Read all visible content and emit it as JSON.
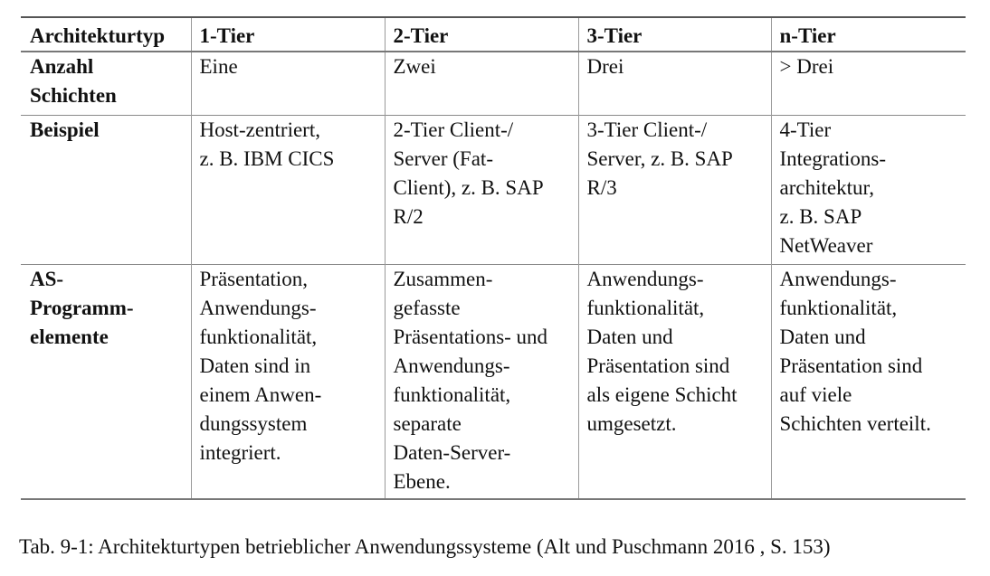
{
  "table": {
    "headers": [
      "Architekturtyp",
      "1-Tier",
      "2-Tier",
      "3-Tier",
      "n-Tier"
    ],
    "rows": [
      {
        "label": [
          "Anzahl",
          "Schichten"
        ],
        "cells": [
          [
            "Eine"
          ],
          [
            "Zwei"
          ],
          [
            "Drei"
          ],
          [
            "> Drei"
          ]
        ]
      },
      {
        "label": [
          "Beispiel"
        ],
        "cells": [
          [
            "Host-zentriert,",
            "z. B. IBM CICS"
          ],
          [
            "2-Tier Client-/",
            "Server (Fat-",
            "Client), z. B. SAP",
            "R/2"
          ],
          [
            "3-Tier Client-/",
            "Server, z. B. SAP",
            "R/3"
          ],
          [
            "4-Tier",
            "Integrations-",
            "architektur,",
            "z. B. SAP",
            "NetWeaver"
          ]
        ]
      },
      {
        "label": [
          "AS-",
          "Programm-",
          "elemente"
        ],
        "cells": [
          [
            "Präsentation,",
            "Anwendungs-",
            "funktionalität,",
            "Daten sind in",
            "einem Anwen-",
            "dungssystem",
            "integriert."
          ],
          [
            "Zusammen-",
            "gefasste",
            "Präsentations- und",
            "Anwendungs-",
            "funktionalität,",
            "separate",
            "Daten-Server-",
            "Ebene."
          ],
          [
            "Anwendungs-",
            "funktionalität,",
            "Daten und",
            "Präsentation sind",
            "als eigene Schicht",
            "umgesetzt."
          ],
          [
            "Anwendungs-",
            "funktionalität,",
            "Daten und",
            "Präsentation sind",
            "auf viele",
            "Schichten verteilt."
          ]
        ]
      }
    ]
  },
  "caption": "Tab. 9-1: Architekturtypen betrieblicher Anwendungssysteme (Alt und Puschmann 2016 , S. 153)"
}
